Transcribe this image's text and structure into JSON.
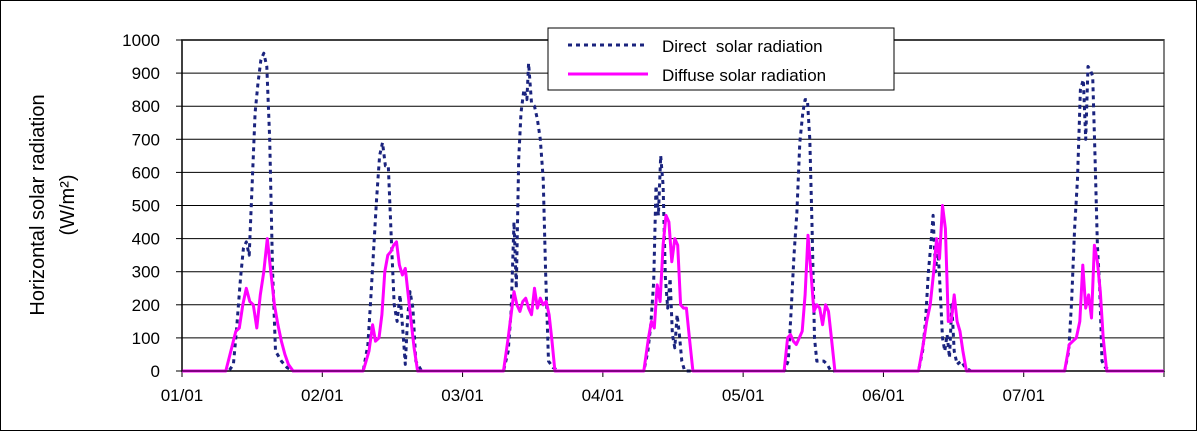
{
  "chart_data": {
    "type": "line",
    "title": "",
    "ylabel_line1": "Horizontal solar radiation",
    "ylabel_line2": "(W/m²)",
    "xlabel": "",
    "ylim": [
      0,
      1000
    ],
    "yticks": [
      0,
      100,
      200,
      300,
      400,
      500,
      600,
      700,
      800,
      900,
      1000
    ],
    "xlim": [
      0,
      168
    ],
    "x_tick_positions": [
      0,
      24,
      48,
      72,
      96,
      120,
      144
    ],
    "x_tick_labels": [
      "01/01",
      "02/01",
      "03/01",
      "04/01",
      "05/01",
      "06/01",
      "07/01"
    ],
    "grid": true,
    "legend_position": "top-center",
    "colors": {
      "direct": "#1a237e",
      "diffuse": "#ff00ff",
      "grid": "#000000",
      "plot_border": "#808080"
    },
    "series": [
      {
        "name": "Direct  solar radiation",
        "style": "dotted",
        "points": [
          [
            0,
            0
          ],
          [
            8,
            0
          ],
          [
            8.8,
            20
          ],
          [
            9.3,
            120
          ],
          [
            10,
            280
          ],
          [
            10.5,
            370
          ],
          [
            11,
            390
          ],
          [
            11.5,
            350
          ],
          [
            12,
            560
          ],
          [
            12.5,
            780
          ],
          [
            13,
            870
          ],
          [
            13.5,
            940
          ],
          [
            14,
            960
          ],
          [
            14.5,
            920
          ],
          [
            15,
            700
          ],
          [
            15.5,
            300
          ],
          [
            16,
            60
          ],
          [
            17,
            30
          ],
          [
            18,
            10
          ],
          [
            19,
            0
          ],
          [
            24,
            0
          ],
          [
            31,
            0
          ],
          [
            31.8,
            80
          ],
          [
            32.3,
            220
          ],
          [
            32.8,
            370
          ],
          [
            33.3,
            520
          ],
          [
            33.8,
            650
          ],
          [
            34.3,
            690
          ],
          [
            34.8,
            620
          ],
          [
            35.3,
            620
          ],
          [
            35.8,
            400
          ],
          [
            36.3,
            200
          ],
          [
            36.8,
            150
          ],
          [
            37.3,
            230
          ],
          [
            37.8,
            120
          ],
          [
            38.2,
            20
          ],
          [
            38.6,
            160
          ],
          [
            39,
            240
          ],
          [
            39.5,
            190
          ],
          [
            40,
            30
          ],
          [
            41,
            0
          ],
          [
            48,
            0
          ],
          [
            55,
            0
          ],
          [
            55.8,
            60
          ],
          [
            56.3,
            180
          ],
          [
            56.8,
            450
          ],
          [
            57.2,
            250
          ],
          [
            57.6,
            640
          ],
          [
            58,
            780
          ],
          [
            58.5,
            850
          ],
          [
            59,
            820
          ],
          [
            59.3,
            930
          ],
          [
            59.8,
            810
          ],
          [
            60.3,
            800
          ],
          [
            60.8,
            760
          ],
          [
            61.3,
            700
          ],
          [
            61.8,
            580
          ],
          [
            62.2,
            300
          ],
          [
            62.7,
            30
          ],
          [
            63.5,
            10
          ],
          [
            64.5,
            0
          ],
          [
            72,
            0
          ],
          [
            79,
            0
          ],
          [
            79.7,
            60
          ],
          [
            80.2,
            140
          ],
          [
            80.7,
            270
          ],
          [
            81.1,
            560
          ],
          [
            81.5,
            470
          ],
          [
            81.9,
            650
          ],
          [
            82.3,
            560
          ],
          [
            82.7,
            280
          ],
          [
            83.1,
            190
          ],
          [
            83.5,
            280
          ],
          [
            83.9,
            110
          ],
          [
            84.3,
            70
          ],
          [
            84.7,
            170
          ],
          [
            85.1,
            110
          ],
          [
            85.5,
            30
          ],
          [
            86,
            0
          ],
          [
            96,
            0
          ],
          [
            103,
            0
          ],
          [
            103.7,
            30
          ],
          [
            104.2,
            180
          ],
          [
            104.7,
            350
          ],
          [
            105.2,
            480
          ],
          [
            105.7,
            690
          ],
          [
            106.2,
            780
          ],
          [
            106.6,
            820
          ],
          [
            107,
            820
          ],
          [
            107.4,
            700
          ],
          [
            107.8,
            430
          ],
          [
            108.2,
            100
          ],
          [
            108.6,
            30
          ],
          [
            109.2,
            30
          ],
          [
            109.8,
            30
          ],
          [
            110.4,
            20
          ],
          [
            111,
            0
          ],
          [
            120,
            0
          ],
          [
            126,
            0
          ],
          [
            126.7,
            60
          ],
          [
            127.2,
            150
          ],
          [
            127.7,
            300
          ],
          [
            128.1,
            380
          ],
          [
            128.5,
            470
          ],
          [
            128.9,
            300
          ],
          [
            129.3,
            380
          ],
          [
            129.7,
            250
          ],
          [
            130.1,
            100
          ],
          [
            130.5,
            60
          ],
          [
            130.9,
            110
          ],
          [
            131.3,
            40
          ],
          [
            131.7,
            200
          ],
          [
            132.1,
            60
          ],
          [
            132.6,
            20
          ],
          [
            133.3,
            30
          ],
          [
            134,
            10
          ],
          [
            135,
            0
          ],
          [
            144,
            0
          ],
          [
            151,
            0
          ],
          [
            151.7,
            60
          ],
          [
            152.2,
            210
          ],
          [
            152.7,
            430
          ],
          [
            153.2,
            580
          ],
          [
            153.7,
            850
          ],
          [
            154.2,
            880
          ],
          [
            154.6,
            700
          ],
          [
            155,
            920
          ],
          [
            155.4,
            910
          ],
          [
            155.8,
            890
          ],
          [
            156.2,
            650
          ],
          [
            156.6,
            380
          ],
          [
            157,
            250
          ],
          [
            157.4,
            30
          ],
          [
            158,
            10
          ],
          [
            159,
            0
          ],
          [
            168,
            0
          ]
        ]
      },
      {
        "name": "Diffuse solar radiation",
        "style": "solid",
        "points": [
          [
            0,
            0
          ],
          [
            7.5,
            0
          ],
          [
            8.5,
            70
          ],
          [
            9.2,
            120
          ],
          [
            9.8,
            130
          ],
          [
            10.4,
            200
          ],
          [
            11,
            250
          ],
          [
            11.6,
            210
          ],
          [
            12.2,
            200
          ],
          [
            12.8,
            130
          ],
          [
            13.4,
            230
          ],
          [
            14,
            300
          ],
          [
            14.6,
            400
          ],
          [
            15.2,
            300
          ],
          [
            15.8,
            200
          ],
          [
            16.4,
            140
          ],
          [
            17,
            90
          ],
          [
            17.6,
            50
          ],
          [
            18.2,
            20
          ],
          [
            19,
            0
          ],
          [
            24,
            0
          ],
          [
            31,
            0
          ],
          [
            32,
            60
          ],
          [
            32.6,
            140
          ],
          [
            33.1,
            90
          ],
          [
            33.7,
            100
          ],
          [
            34.2,
            170
          ],
          [
            34.7,
            300
          ],
          [
            35.2,
            350
          ],
          [
            35.7,
            360
          ],
          [
            36.2,
            380
          ],
          [
            36.7,
            390
          ],
          [
            37.2,
            320
          ],
          [
            37.7,
            290
          ],
          [
            38.2,
            310
          ],
          [
            38.7,
            230
          ],
          [
            39.2,
            150
          ],
          [
            39.7,
            70
          ],
          [
            40.3,
            0
          ],
          [
            48,
            0
          ],
          [
            55,
            0
          ],
          [
            55.8,
            100
          ],
          [
            56.3,
            170
          ],
          [
            56.8,
            240
          ],
          [
            57.3,
            200
          ],
          [
            57.8,
            180
          ],
          [
            58.3,
            210
          ],
          [
            58.8,
            220
          ],
          [
            59.3,
            190
          ],
          [
            59.8,
            170
          ],
          [
            60.3,
            250
          ],
          [
            60.8,
            190
          ],
          [
            61.3,
            220
          ],
          [
            61.8,
            200
          ],
          [
            62.3,
            210
          ],
          [
            62.8,
            170
          ],
          [
            63.3,
            90
          ],
          [
            63.8,
            0
          ],
          [
            72,
            0
          ],
          [
            79,
            0
          ],
          [
            79.8,
            100
          ],
          [
            80.3,
            150
          ],
          [
            80.8,
            130
          ],
          [
            81.3,
            260
          ],
          [
            81.8,
            210
          ],
          [
            82.3,
            380
          ],
          [
            82.8,
            470
          ],
          [
            83.3,
            450
          ],
          [
            83.8,
            330
          ],
          [
            84.3,
            400
          ],
          [
            84.8,
            380
          ],
          [
            85.3,
            200
          ],
          [
            85.8,
            190
          ],
          [
            86.3,
            190
          ],
          [
            86.8,
            100
          ],
          [
            87.4,
            0
          ],
          [
            96,
            0
          ],
          [
            103,
            0
          ],
          [
            103.6,
            100
          ],
          [
            104.1,
            110
          ],
          [
            104.6,
            90
          ],
          [
            105.1,
            80
          ],
          [
            105.6,
            100
          ],
          [
            106.1,
            120
          ],
          [
            106.6,
            230
          ],
          [
            107.1,
            410
          ],
          [
            107.6,
            300
          ],
          [
            108.1,
            180
          ],
          [
            108.6,
            200
          ],
          [
            109.1,
            190
          ],
          [
            109.6,
            140
          ],
          [
            110.1,
            200
          ],
          [
            110.6,
            180
          ],
          [
            111.1,
            100
          ],
          [
            111.7,
            0
          ],
          [
            120,
            0
          ],
          [
            126,
            0
          ],
          [
            126.8,
            80
          ],
          [
            127.4,
            150
          ],
          [
            128,
            200
          ],
          [
            128.6,
            300
          ],
          [
            129.1,
            400
          ],
          [
            129.6,
            340
          ],
          [
            130.1,
            500
          ],
          [
            130.6,
            430
          ],
          [
            131.1,
            150
          ],
          [
            131.6,
            150
          ],
          [
            132.1,
            230
          ],
          [
            132.6,
            150
          ],
          [
            133.1,
            120
          ],
          [
            133.6,
            60
          ],
          [
            134.2,
            0
          ],
          [
            144,
            0
          ],
          [
            151,
            0
          ],
          [
            151.8,
            80
          ],
          [
            152.4,
            90
          ],
          [
            153,
            100
          ],
          [
            153.6,
            150
          ],
          [
            154.1,
            320
          ],
          [
            154.6,
            190
          ],
          [
            155.1,
            230
          ],
          [
            155.6,
            160
          ],
          [
            156.1,
            380
          ],
          [
            156.6,
            330
          ],
          [
            157.1,
            240
          ],
          [
            157.6,
            100
          ],
          [
            158.2,
            0
          ],
          [
            168,
            0
          ]
        ]
      }
    ]
  }
}
